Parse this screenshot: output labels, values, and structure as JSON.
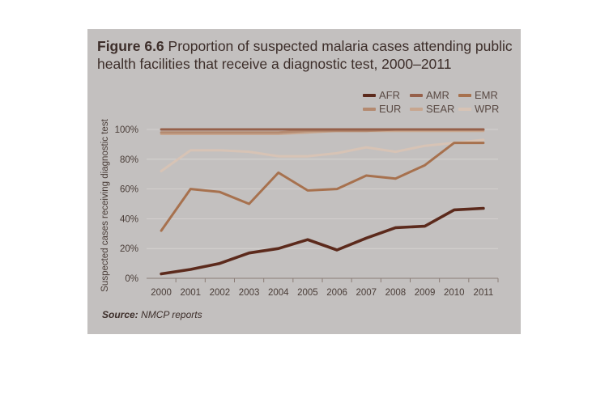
{
  "figure": {
    "number": "Figure 6.6",
    "title_text": "Proportion of suspected malaria cases attending public health facilities that receive a diagnostic test, 2000–2011",
    "source_label": "Source:",
    "source_text": "NMCP reports"
  },
  "chart_data": {
    "type": "line",
    "title": "Proportion of suspected malaria cases attending public health facilities that receive a diagnostic test, 2000–2011",
    "xlabel": "",
    "ylabel": "Suspected cases receiving diagnostic test",
    "x": [
      "2000",
      "2001",
      "2002",
      "2003",
      "2004",
      "2005",
      "2006",
      "2007",
      "2008",
      "2009",
      "2010",
      "2011"
    ],
    "y_ticks": [
      "0%",
      "20%",
      "40%",
      "60%",
      "80%",
      "100%"
    ],
    "ylim": [
      0,
      100
    ],
    "grid": true,
    "legend_position": "top-right",
    "series": [
      {
        "name": "AFR",
        "color": "#5c2a1c",
        "values": [
          3,
          6,
          10,
          17,
          20,
          26,
          19,
          27,
          34,
          35,
          46,
          47
        ]
      },
      {
        "name": "AMR",
        "color": "#96604a",
        "values": [
          100,
          100,
          100,
          100,
          100,
          100,
          100,
          100,
          100,
          100,
          100,
          100
        ]
      },
      {
        "name": "EMR",
        "color": "#a7714e",
        "values": [
          32,
          60,
          58,
          50,
          71,
          59,
          60,
          69,
          67,
          76,
          91,
          91
        ]
      },
      {
        "name": "EUR",
        "color": "#b48a70",
        "values": [
          98,
          98,
          98,
          98,
          98,
          99,
          99,
          99,
          100,
          100,
          100,
          100
        ]
      },
      {
        "name": "SEAR",
        "color": "#c7a68f",
        "values": [
          97,
          97,
          97,
          97,
          97,
          98,
          99,
          99,
          99,
          99,
          99,
          99
        ]
      },
      {
        "name": "WPR",
        "color": "#d7c3b5",
        "values": [
          72,
          86,
          86,
          85,
          82,
          82,
          84,
          88,
          85,
          89,
          91,
          93
        ]
      }
    ]
  }
}
